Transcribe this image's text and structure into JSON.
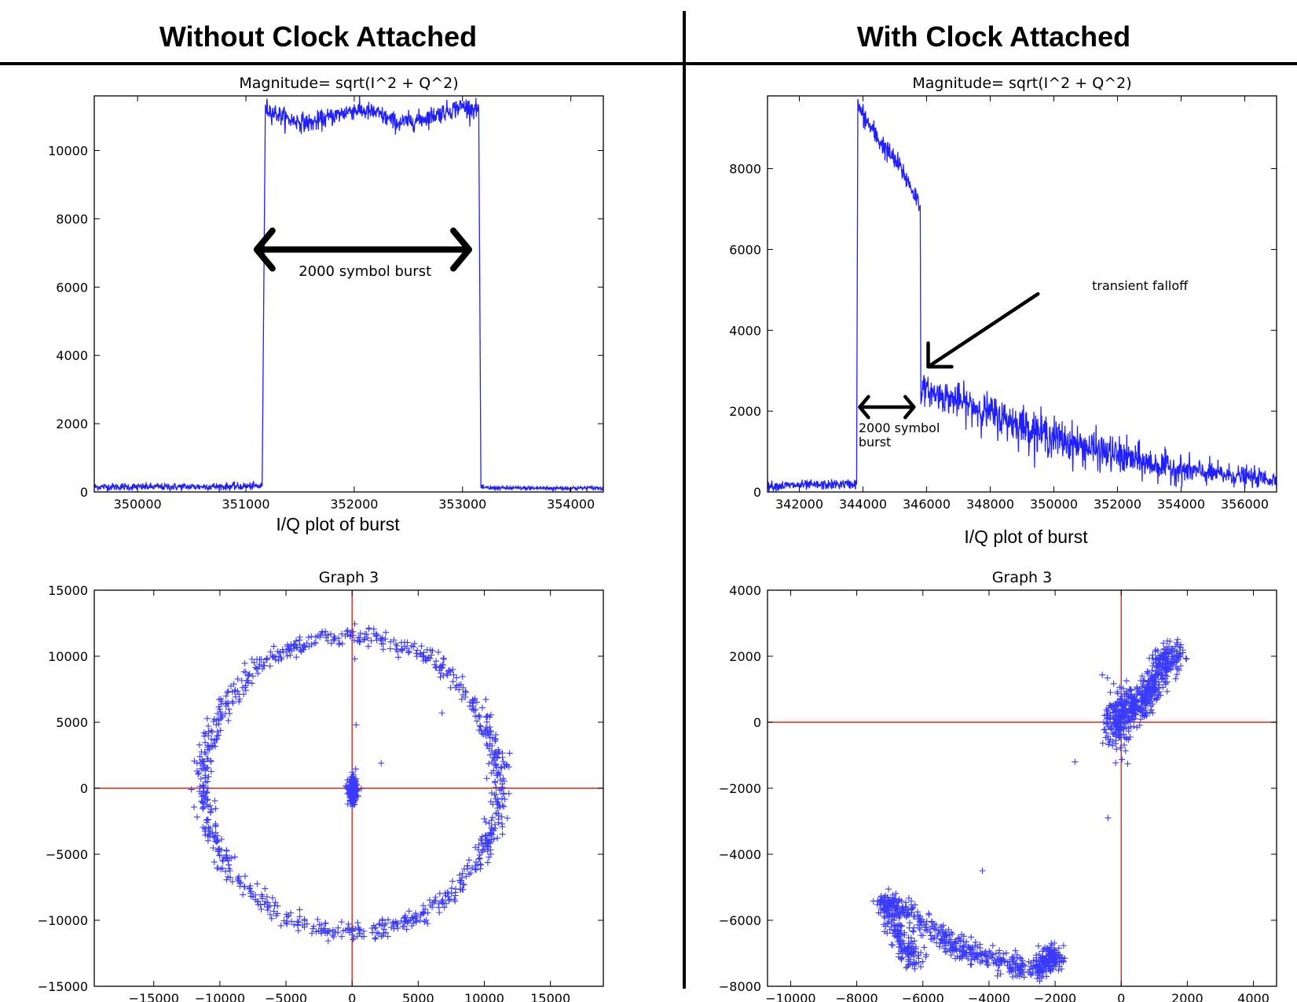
{
  "headers": {
    "left": "Without Clock Attached",
    "right": "With Clock Attached"
  },
  "subtitles": {
    "left": "I/Q plot of burst",
    "right": "I/Q plot of burst"
  },
  "colors": {
    "series": "#1f1fff",
    "scatter": "#3a3aff",
    "axes_lines": "#d62a1a",
    "annotation": "#000000"
  },
  "chart_data": [
    {
      "type": "line",
      "title": "Magnitude= sqrt(I^2 + Q^2)",
      "xlabel": "",
      "ylabel": "",
      "xlim": [
        349600,
        354300
      ],
      "ylim": [
        0,
        11600
      ],
      "xticks": [
        350000,
        351000,
        352000,
        353000,
        354000
      ],
      "xtick_labels": [
        "350000",
        "351000",
        "352000",
        "353000",
        "354000"
      ],
      "yticks": [
        0,
        2000,
        4000,
        6000,
        8000,
        10000
      ],
      "ytick_labels": [
        "0",
        "2000",
        "4000",
        "6000",
        "8000",
        "10000"
      ],
      "series": [
        {
          "x": [
            349600,
            350200,
            350800,
            351150,
            351180,
            351200,
            351400,
            351600,
            351800,
            352000,
            352200,
            352400,
            352600,
            352800,
            353000,
            353150,
            353170,
            353190,
            353600,
            354000,
            354300
          ],
          "y": [
            150,
            150,
            160,
            170,
            11300,
            11200,
            10900,
            10800,
            11000,
            11200,
            11100,
            10800,
            10900,
            11100,
            11300,
            11200,
            150,
            120,
            110,
            110,
            120
          ],
          "noise": [
            100,
            100,
            100,
            100,
            250,
            250,
            250,
            250,
            250,
            250,
            250,
            250,
            250,
            250,
            250,
            250,
            60,
            60,
            60,
            60,
            60
          ]
        }
      ],
      "annotations": [
        {
          "text": "2000 symbol burst",
          "type": "double-arrow",
          "x1": 351100,
          "x2": 353060,
          "y": 7100,
          "text_x": 352100,
          "text_y": 6330
        }
      ]
    },
    {
      "type": "line",
      "title": "Magnitude= sqrt(I^2 + Q^2)",
      "xlabel": "",
      "ylabel": "",
      "xlim": [
        341000,
        357000
      ],
      "ylim": [
        0,
        9800
      ],
      "xticks": [
        342000,
        344000,
        346000,
        348000,
        350000,
        352000,
        354000,
        356000
      ],
      "xtick_labels": [
        "342000",
        "344000",
        "346000",
        "348000",
        "350000",
        "352000",
        "354000",
        "356000"
      ],
      "yticks": [
        0,
        2000,
        4000,
        6000,
        8000
      ],
      "ytick_labels": [
        "0",
        "2000",
        "4000",
        "6000",
        "8000"
      ],
      "series": [
        {
          "x": [
            341000,
            342500,
            343800,
            343840,
            343860,
            344500,
            345200,
            345800,
            345820,
            345840,
            346000,
            347000,
            348000,
            349000,
            350000,
            351000,
            352000,
            353000,
            354000,
            355000,
            356000,
            357000
          ],
          "y": [
            150,
            170,
            200,
            9600,
            9500,
            8700,
            8000,
            7100,
            2200,
            2600,
            2500,
            2250,
            1950,
            1650,
            1350,
            1100,
            900,
            700,
            550,
            450,
            380,
            300
          ],
          "noise": [
            110,
            110,
            110,
            250,
            250,
            250,
            250,
            250,
            120,
            300,
            300,
            380,
            420,
            450,
            450,
            420,
            400,
            360,
            300,
            260,
            220,
            200
          ]
        }
      ],
      "annotations": [
        {
          "text": "transient falloff",
          "type": "arrow",
          "x1": 349500,
          "y1": 4900,
          "x2": 346050,
          "y2": 3100,
          "text_x": 351200,
          "text_y": 5000
        },
        {
          "text": "2000 symbol",
          "text2": "burst",
          "type": "double-arrow",
          "x1": 343900,
          "x2": 345600,
          "y": 2100,
          "text_x": 343860,
          "text_y": 1480
        }
      ]
    },
    {
      "type": "scatter",
      "title": "Graph 3",
      "xlabel": "",
      "ylabel": "",
      "xlim": [
        -19500,
        19000
      ],
      "ylim": [
        -15000,
        15000
      ],
      "xticks": [
        -15000,
        -10000,
        -5000,
        0,
        5000,
        10000,
        15000
      ],
      "xtick_labels": [
        "−15000",
        "−10000",
        "−5000",
        "0",
        "5000",
        "10000",
        "15000"
      ],
      "yticks": [
        -15000,
        -10000,
        -5000,
        0,
        5000,
        10000,
        15000
      ],
      "ytick_labels": [
        "−15000",
        "−10000",
        "−5000",
        "0",
        "5000",
        "10000",
        "15000"
      ],
      "marker": "+",
      "clusters": [
        {
          "shape": "ring",
          "cx": -100,
          "cy": 300,
          "r": 11200,
          "spread": 350,
          "count": 900
        },
        {
          "shape": "blob",
          "cx": 50,
          "cy": -200,
          "sx": 180,
          "sy": 500,
          "count": 160
        }
      ],
      "points": [
        [
          200,
          9800
        ],
        [
          300,
          4800
        ],
        [
          6800,
          5700
        ],
        [
          2200,
          1900
        ]
      ],
      "reference_lines": {
        "x": 0,
        "y": 0
      }
    },
    {
      "type": "scatter",
      "title": "Graph 3",
      "xlabel": "",
      "ylabel": "",
      "xlim": [
        -10700,
        4700
      ],
      "ylim": [
        -8000,
        4000
      ],
      "xticks": [
        -10000,
        -8000,
        -6000,
        -4000,
        -2000,
        0,
        2000,
        4000
      ],
      "xtick_labels": [
        "−10000",
        "−8000",
        "−6000",
        "−4000",
        "−2000",
        "0",
        "2000",
        "4000"
      ],
      "yticks": [
        -8000,
        -6000,
        -4000,
        -2000,
        0,
        2000,
        4000
      ],
      "ytick_labels": [
        "−8000",
        "−6000",
        "−4000",
        "−2000",
        "0",
        "2000",
        "4000"
      ],
      "marker": "+",
      "clusters": [
        {
          "shape": "path",
          "pts": [
            [
              100,
              200
            ],
            [
              500,
              500
            ],
            [
              900,
              1100
            ],
            [
              1300,
              1800
            ],
            [
              1600,
              2200
            ]
          ],
          "spread": 220,
          "count": 450
        },
        {
          "shape": "blob",
          "cx": -100,
          "cy": 0,
          "sx": 200,
          "sy": 450,
          "count": 160
        },
        {
          "shape": "path",
          "pts": [
            [
              -6200,
              -7300
            ],
            [
              -6700,
              -6600
            ],
            [
              -7200,
              -5400
            ],
            [
              -6600,
              -5700
            ],
            [
              -5500,
              -6500
            ],
            [
              -4500,
              -7000
            ],
            [
              -3500,
              -7300
            ],
            [
              -2600,
              -7500
            ],
            [
              -2000,
              -7200
            ],
            [
              -2200,
              -6900
            ]
          ],
          "spread": 160,
          "count": 750
        }
      ],
      "points": [
        [
          -1400,
          -1200
        ],
        [
          -400,
          -2900
        ],
        [
          -4200,
          -4500
        ]
      ],
      "reference_lines": {
        "x": 0,
        "y": 0
      }
    }
  ]
}
